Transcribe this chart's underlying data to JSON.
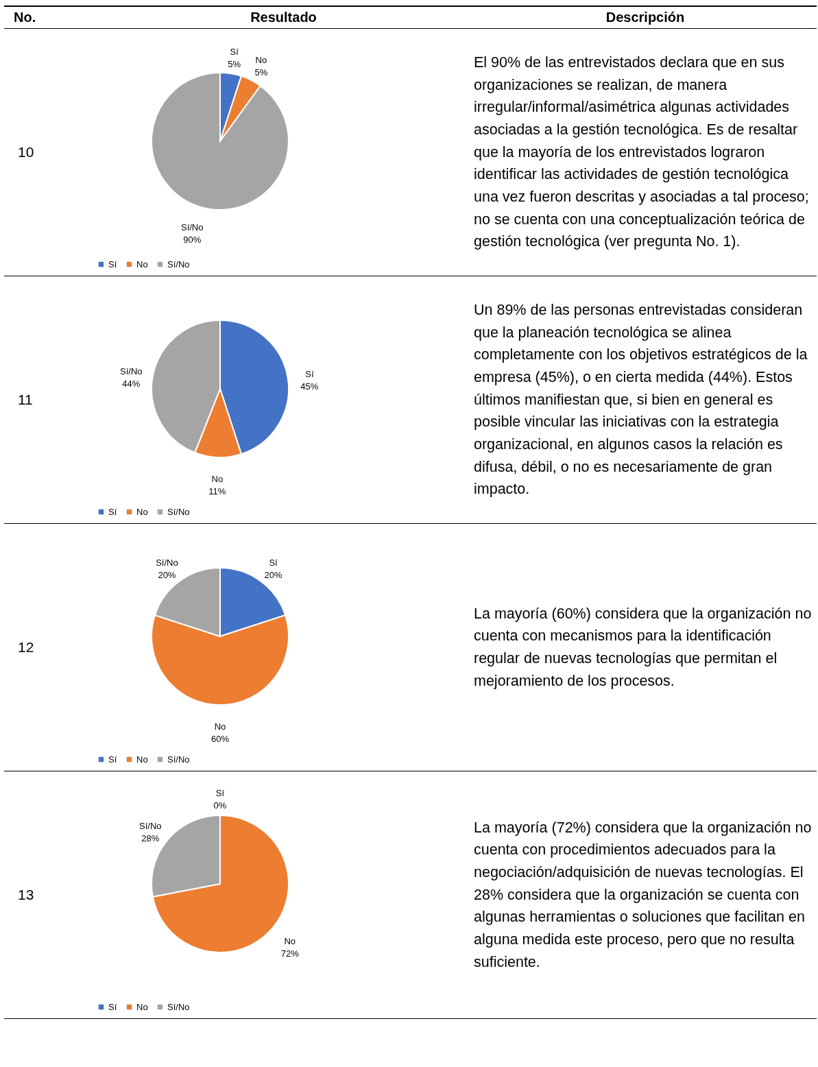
{
  "chart_data": [
    {
      "type": "other",
      "annotations": [
        "No.",
        "Resultado",
        "Descripción"
      ]
    },
    {
      "type": "other",
      "annotations": [
        "10"
      ]
    },
    {
      "type": "pie",
      "categories": [
        "Sí",
        "No",
        "Sí/No"
      ],
      "values": [
        5,
        5,
        90
      ],
      "value_labels": [
        "5%",
        "5%",
        "90%"
      ],
      "colors": [
        "#4472c4",
        "#ed7d31",
        "#a5a5a5"
      ],
      "legend": "bottom"
    },
    {
      "type": "other",
      "annotations": [
        "El 90% de las entrevistados declara que en sus organizaciones se realizan, de manera irregular/informal/asimétrica algunas actividades asociadas a la gestión tecnológica. Es de resaltar que la mayoría de los entrevistados lograron identificar las actividades de gestión tecnológica una vez fueron descritas y asociadas a tal proceso; no se cuenta con una conceptualización teórica de gestión tecnológica (ver pregunta No. 1)."
      ]
    },
    {
      "type": "other",
      "annotations": [
        "11"
      ]
    },
    {
      "type": "pie",
      "categories": [
        "Sí",
        "No",
        "Sí/No"
      ],
      "values": [
        45,
        11,
        44
      ],
      "value_labels": [
        "45%",
        "11%",
        "44%"
      ],
      "colors": [
        "#4472c4",
        "#ed7d31",
        "#a5a5a5"
      ],
      "legend": "bottom"
    },
    {
      "type": "other",
      "annotations": [
        "Un 89% de las personas entrevistadas consideran que la planeación tecnológica se alinea completamente con los objetivos estratégicos de la empresa (45%), o en cierta medida (44%). Estos últimos manifiestan que, si bien en general es posible vincular las iniciativas con la estrategia organizacional, en algunos casos la relación es difusa, débil, o no es necesariamente de gran impacto."
      ]
    },
    {
      "type": "other",
      "annotations": [
        "12"
      ]
    },
    {
      "type": "pie",
      "categories": [
        "Sí",
        "No",
        "Sí/No"
      ],
      "values": [
        20,
        60,
        20
      ],
      "value_labels": [
        "20%",
        "60%",
        "20%"
      ],
      "colors": [
        "#4472c4",
        "#ed7d31",
        "#a5a5a5"
      ],
      "legend": "bottom"
    },
    {
      "type": "other",
      "annotations": [
        "La mayoría (60%) considera que la organización no cuenta con mecanismos para la identificación regular de nuevas tecnologías que permitan el mejoramiento de los procesos."
      ]
    },
    {
      "type": "other",
      "annotations": [
        "13"
      ]
    },
    {
      "type": "pie",
      "categories": [
        "Sí",
        "No",
        "Sí/No"
      ],
      "values": [
        0,
        72,
        28
      ],
      "value_labels": [
        "0%",
        "72%",
        "28%"
      ],
      "colors": [
        "#4472c4",
        "#ed7d31",
        "#a5a5a5"
      ],
      "legend": "bottom"
    },
    {
      "type": "other",
      "annotations": [
        "La mayoría (72%) considera que la organización no cuenta con procedimientos adecuados para la negociación/adquisición de nuevas tecnologías. El 28% considera que la organización se cuenta con algunas herramientas o soluciones que facilitan en alguna medida este proceso, pero que no resulta suficiente."
      ]
    }
  ]
}
